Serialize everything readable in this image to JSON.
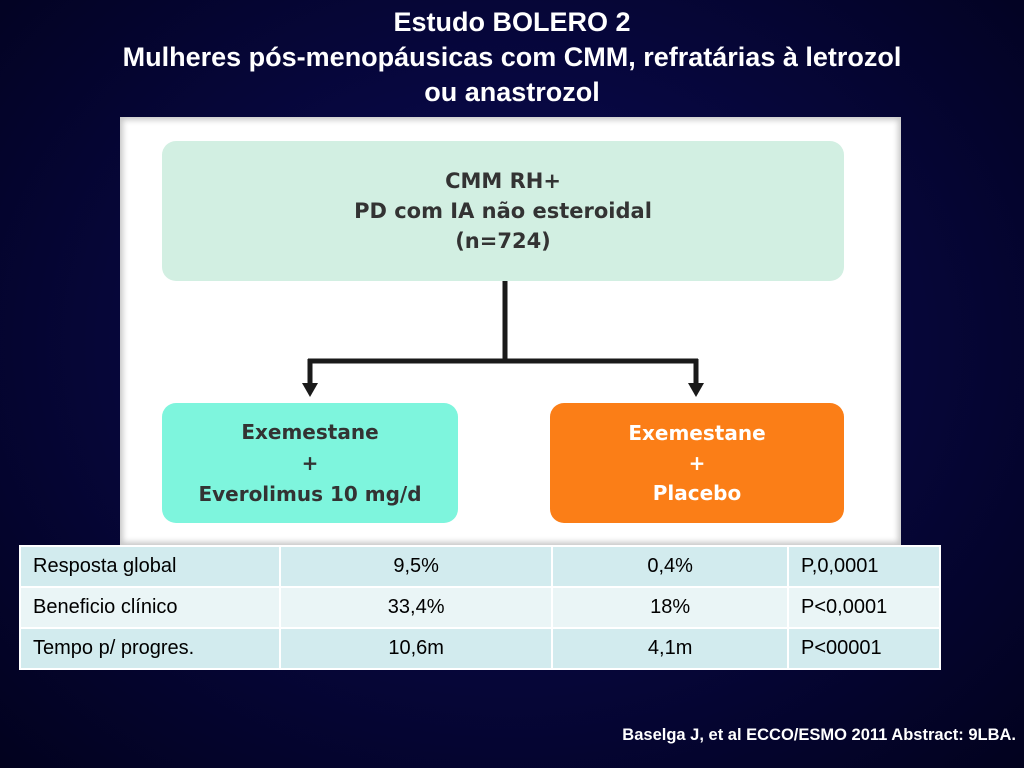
{
  "title": {
    "line1": "Estudo BOLERO 2",
    "line2": "Mulheres pós-menopáusicas com CMM, refratárias à letrozol",
    "line3": "ou anastrozol"
  },
  "diagram": {
    "top_box": {
      "line1": "CMM RH+",
      "line2": "PD com IA não esteroidal",
      "line3": "(n=724)"
    },
    "left_box": {
      "line1": "Exemestane",
      "line2": "+",
      "line3": "Everolimus 10 mg/d"
    },
    "right_box": {
      "line1": "Exemestane",
      "line2": "+",
      "line3": "Placebo"
    },
    "colors": {
      "top_box": "#d2efe2",
      "left_box": "#7ef5dd",
      "right_box": "#fb7e17"
    }
  },
  "results_table": {
    "rows": [
      {
        "label": "Resposta global",
        "arm1": "9,5%",
        "arm2": "0,4%",
        "p": "P,0,0001"
      },
      {
        "label": "Beneficio clínico",
        "arm1": "33,4%",
        "arm2": "18%",
        "p": "P<0,0001"
      },
      {
        "label": "Tempo p/  progres.",
        "arm1": "10,6m",
        "arm2": "4,1m",
        "p": "P<00001"
      }
    ]
  },
  "citation": "Baselga J, et al ECCO/ESMO 2011 Abstract: 9LBA."
}
